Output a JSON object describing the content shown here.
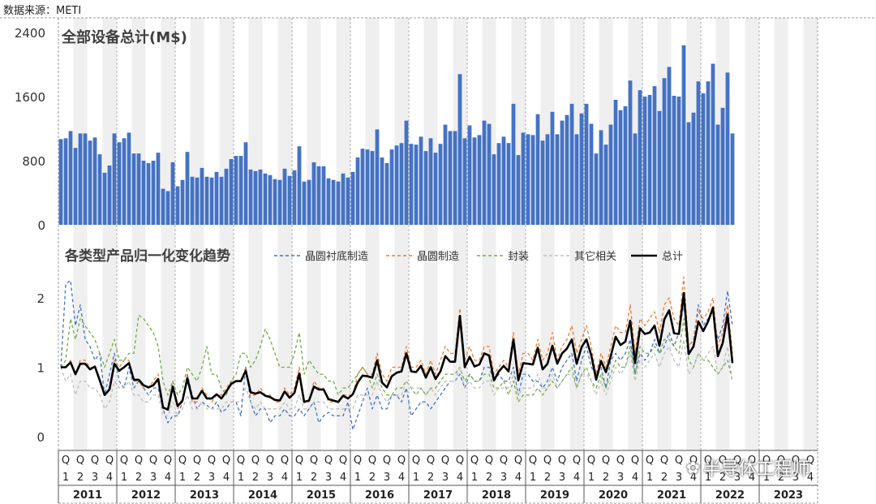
{
  "source_label": "数据来源：METI",
  "watermark": {
    "icon": "wechat-icon",
    "text": "半导体工程师"
  },
  "chart_data": [
    {
      "type": "bar",
      "title": "全部设备总计(M$)",
      "ylim": [
        0,
        2400
      ],
      "yticks": [
        0,
        800,
        1600,
        2400
      ],
      "color": "#4472c4",
      "series": [
        {
          "values": [
            1070,
            1080,
            1170,
            960,
            1140,
            1140,
            1050,
            1090,
            880,
            650,
            740,
            1140,
            1030,
            1080,
            1150,
            890,
            890,
            800,
            770,
            800,
            900,
            450,
            420,
            780,
            480,
            560,
            910,
            600,
            590,
            710,
            600,
            590,
            660,
            600,
            700,
            820,
            860,
            860,
            1030,
            690,
            670,
            690,
            640,
            620,
            570,
            560,
            700,
            610,
            680,
            980,
            540,
            560,
            780,
            730,
            730,
            580,
            560,
            540,
            640,
            590,
            660,
            840,
            950,
            940,
            920,
            1190,
            840,
            770,
            940,
            990,
            1020,
            1300,
            1010,
            1000,
            1100,
            920,
            1080,
            900,
            1010,
            1250,
            1170,
            1170,
            1880,
            1080,
            1240,
            1090,
            1120,
            1300,
            1260,
            880,
            1020,
            1100,
            1020,
            1510,
            870,
            1150,
            1130,
            1120,
            1380,
            1050,
            1130,
            1410,
            1130,
            1300,
            1370,
            1510,
            1130,
            1390,
            1510,
            1260,
            890,
            1180,
            1000,
            1250,
            1560,
            1430,
            1480,
            1800,
            1140,
            1680,
            1600,
            1620,
            1730,
            1420,
            1830,
            1970,
            1610,
            1600,
            2240,
            1280,
            1400,
            1790,
            1640,
            1790,
            2010,
            1250,
            1460,
            1900,
            1140
          ]
        }
      ]
    },
    {
      "type": "line",
      "title": "各类型产品归一化变化趋势",
      "ylim": [
        0,
        2
      ],
      "yticks": [
        0,
        1,
        2
      ],
      "series": [
        {
          "name": "晶圆衬底制造",
          "color": "#4472c4",
          "dash": "dashed",
          "values": [
            1.0,
            2.2,
            2.25,
            1.6,
            1.9,
            1.4,
            1.3,
            1.1,
            1.2,
            0.6,
            0.9,
            1.2,
            0.8,
            0.7,
            1.0,
            0.7,
            0.8,
            0.7,
            0.6,
            0.7,
            0.7,
            0.4,
            0.2,
            0.3,
            0.3,
            0.5,
            0.9,
            0.6,
            0.4,
            0.5,
            0.45,
            0.4,
            0.5,
            0.35,
            0.4,
            0.5,
            0.5,
            0.3,
            1.0,
            0.5,
            0.3,
            0.4,
            0.4,
            0.2,
            0.3,
            0.3,
            0.4,
            0.3,
            0.3,
            0.4,
            0.3,
            0.4,
            0.5,
            0.2,
            0.3,
            0.35,
            0.3,
            0.3,
            0.3,
            0.5,
            0.1,
            0.3,
            0.5,
            0.7,
            0.4,
            0.6,
            0.4,
            0.4,
            0.6,
            0.6,
            0.5,
            0.7,
            0.3,
            0.4,
            0.5,
            0.5,
            0.4,
            0.5,
            0.6,
            0.7,
            0.8,
            0.8,
            0.9,
            0.7,
            0.9,
            0.8,
            0.8,
            1.0,
            1.0,
            0.8,
            0.9,
            0.8,
            0.8,
            1.0,
            0.6,
            0.9,
            0.9,
            0.8,
            0.8,
            0.7,
            0.8,
            1.0,
            0.8,
            1.0,
            1.1,
            1.2,
            0.8,
            1.1,
            1.3,
            1.0,
            0.9,
            1.0,
            0.7,
            1.1,
            1.2,
            1.1,
            1.2,
            1.4,
            0.9,
            1.2,
            1.1,
            1.2,
            1.4,
            1.2,
            1.3,
            1.5,
            1.3,
            1.5,
            1.9,
            1.3,
            1.4,
            1.9,
            1.6,
            1.7,
            1.8,
            1.4,
            1.6,
            2.1,
            1.6
          ]
        },
        {
          "name": "晶圆制造",
          "color": "#ed7d31",
          "dash": "dashed",
          "values": [
            1.0,
            1.0,
            1.1,
            0.9,
            1.1,
            1.1,
            1.0,
            1.0,
            0.8,
            0.6,
            0.7,
            1.1,
            1.0,
            1.1,
            1.1,
            0.8,
            0.8,
            0.7,
            0.7,
            0.8,
            0.9,
            0.4,
            0.4,
            0.8,
            0.4,
            0.5,
            0.9,
            0.5,
            0.5,
            0.7,
            0.6,
            0.5,
            0.6,
            0.6,
            0.7,
            0.8,
            0.8,
            0.8,
            1.0,
            0.6,
            0.6,
            0.7,
            0.6,
            0.6,
            0.5,
            0.5,
            0.7,
            0.6,
            0.7,
            1.0,
            0.5,
            0.5,
            0.8,
            0.7,
            0.7,
            0.5,
            0.5,
            0.5,
            0.6,
            0.6,
            0.6,
            0.9,
            1.0,
            0.9,
            0.9,
            1.2,
            0.9,
            0.8,
            1.0,
            1.0,
            1.0,
            1.3,
            1.0,
            1.0,
            1.1,
            0.9,
            1.1,
            0.9,
            1.1,
            1.3,
            1.2,
            1.2,
            1.85,
            1.1,
            1.3,
            1.1,
            1.1,
            1.3,
            1.3,
            0.9,
            1.0,
            1.1,
            1.0,
            1.5,
            0.9,
            1.2,
            1.2,
            1.1,
            1.4,
            1.1,
            1.2,
            1.5,
            1.1,
            1.3,
            1.4,
            1.6,
            1.2,
            1.4,
            1.6,
            1.3,
            0.9,
            1.2,
            1.0,
            1.3,
            1.6,
            1.5,
            1.5,
            1.9,
            1.2,
            1.7,
            1.6,
            1.7,
            1.8,
            1.5,
            1.9,
            2.0,
            1.7,
            1.6,
            2.3,
            1.3,
            1.4,
            1.8,
            1.7,
            1.8,
            2.0,
            1.3,
            1.5,
            1.9,
            1.2
          ]
        },
        {
          "name": "封装",
          "color": "#70ad47",
          "dash": "dashed",
          "values": [
            1.0,
            1.1,
            1.7,
            1.4,
            1.7,
            1.6,
            1.5,
            1.4,
            1.2,
            1.0,
            1.2,
            1.4,
            1.1,
            1.1,
            1.2,
            1.2,
            1.75,
            1.7,
            1.6,
            1.5,
            1.3,
            0.8,
            0.6,
            0.8,
            0.6,
            0.7,
            1.0,
            0.9,
            0.8,
            1.0,
            1.3,
            0.9,
            0.9,
            0.7,
            0.6,
            0.8,
            0.9,
            1.2,
            1.2,
            1.0,
            1.1,
            1.3,
            1.55,
            1.4,
            1.2,
            1.0,
            1.0,
            1.0,
            1.2,
            1.5,
            0.9,
            1.1,
            1.0,
            0.9,
            0.9,
            0.8,
            0.8,
            0.6,
            0.7,
            0.7,
            0.8,
            0.9,
            1.0,
            0.9,
            0.7,
            0.9,
            0.7,
            0.6,
            0.6,
            0.7,
            0.7,
            0.8,
            0.7,
            0.6,
            0.7,
            0.6,
            0.7,
            0.7,
            0.8,
            0.9,
            0.9,
            0.9,
            1.0,
            0.8,
            0.9,
            0.8,
            0.8,
            0.9,
            0.9,
            0.7,
            0.7,
            0.8,
            0.6,
            0.8,
            0.5,
            0.6,
            0.6,
            0.6,
            0.7,
            0.6,
            0.7,
            0.8,
            0.7,
            0.8,
            0.9,
            1.0,
            0.7,
            0.9,
            1.0,
            0.8,
            0.7,
            0.9,
            0.7,
            0.9,
            1.1,
            1.0,
            1.0,
            1.3,
            0.9,
            1.3,
            1.2,
            1.2,
            1.3,
            1.2,
            1.4,
            1.4,
            1.3,
            1.2,
            1.7,
            1.1,
            1.0,
            1.2,
            1.1,
            1.1,
            1.0,
            0.9,
            1.0,
            1.1,
            0.8
          ]
        },
        {
          "name": "其它相关",
          "color": "#bfbfbf",
          "dash": "dashed",
          "values": [
            1.0,
            0.8,
            0.9,
            0.6,
            0.8,
            0.8,
            0.7,
            0.7,
            0.6,
            0.4,
            0.5,
            0.8,
            0.7,
            0.7,
            0.8,
            0.6,
            0.6,
            0.5,
            0.5,
            0.6,
            0.6,
            0.3,
            0.3,
            0.5,
            0.3,
            0.4,
            0.6,
            0.4,
            0.4,
            0.5,
            0.4,
            0.4,
            0.4,
            0.4,
            0.5,
            0.5,
            0.5,
            0.5,
            0.7,
            0.5,
            0.4,
            0.5,
            0.4,
            0.4,
            0.4,
            0.4,
            0.5,
            0.4,
            0.4,
            0.6,
            0.4,
            0.4,
            0.5,
            0.5,
            0.5,
            0.4,
            0.4,
            0.4,
            0.4,
            0.4,
            0.4,
            0.6,
            0.6,
            0.6,
            0.6,
            0.8,
            0.6,
            0.5,
            0.6,
            0.6,
            0.6,
            0.8,
            0.7,
            0.7,
            0.7,
            0.6,
            0.7,
            0.6,
            0.7,
            0.8,
            0.8,
            0.8,
            1.0,
            0.7,
            0.8,
            0.7,
            0.7,
            0.8,
            0.8,
            0.6,
            0.7,
            0.7,
            0.7,
            0.9,
            0.6,
            0.7,
            0.7,
            0.7,
            0.9,
            0.7,
            0.7,
            0.9,
            0.7,
            0.8,
            0.9,
            0.9,
            0.7,
            0.9,
            0.9,
            0.8,
            0.6,
            0.8,
            0.6,
            0.8,
            1.0,
            0.9,
            1.0,
            1.2,
            0.8,
            1.1,
            1.0,
            1.1,
            1.2,
            1.0,
            1.2,
            1.3,
            1.1,
            1.0,
            1.4,
            0.9,
            1.0,
            1.2,
            1.1,
            1.2,
            1.3,
            0.9,
            1.0,
            1.3,
            0.8
          ]
        },
        {
          "name": "总计",
          "color": "#000000",
          "dash": "solid",
          "values": [
            1.0,
            1.0,
            1.07,
            0.9,
            1.05,
            1.05,
            0.97,
            1.01,
            0.81,
            0.6,
            0.68,
            1.05,
            0.95,
            1.0,
            1.06,
            0.82,
            0.82,
            0.74,
            0.71,
            0.74,
            0.83,
            0.42,
            0.39,
            0.72,
            0.44,
            0.52,
            0.84,
            0.55,
            0.55,
            0.66,
            0.55,
            0.55,
            0.61,
            0.55,
            0.65,
            0.76,
            0.8,
            0.8,
            0.95,
            0.64,
            0.62,
            0.64,
            0.59,
            0.57,
            0.53,
            0.52,
            0.65,
            0.56,
            0.63,
            0.91,
            0.5,
            0.52,
            0.72,
            0.68,
            0.68,
            0.54,
            0.52,
            0.5,
            0.59,
            0.55,
            0.61,
            0.78,
            0.88,
            0.87,
            0.85,
            1.1,
            0.78,
            0.71,
            0.87,
            0.92,
            0.94,
            1.2,
            0.94,
            0.93,
            1.02,
            0.85,
            1.0,
            0.83,
            0.94,
            1.16,
            1.08,
            1.08,
            1.74,
            1.0,
            1.15,
            1.01,
            1.04,
            1.2,
            1.17,
            0.81,
            0.94,
            1.02,
            0.94,
            1.4,
            0.81,
            1.06,
            1.05,
            1.04,
            1.28,
            0.97,
            1.05,
            1.31,
            1.05,
            1.2,
            1.27,
            1.4,
            1.05,
            1.29,
            1.4,
            1.17,
            0.82,
            1.09,
            0.93,
            1.16,
            1.44,
            1.32,
            1.37,
            1.67,
            1.06,
            1.56,
            1.48,
            1.5,
            1.6,
            1.31,
            1.69,
            1.82,
            1.49,
            1.48,
            2.07,
            1.19,
            1.3,
            1.66,
            1.52,
            1.66,
            1.86,
            1.16,
            1.35,
            1.76,
            1.06
          ]
        }
      ]
    }
  ],
  "x_axis": {
    "quarter_prefix": "Q",
    "quarter_numbers": [
      "1",
      "2",
      "3",
      "4"
    ],
    "years": [
      {
        "label": "2011",
        "quarters": [
          "1",
          "2",
          "3",
          "4"
        ]
      },
      {
        "label": "2012",
        "quarters": [
          "1",
          "2",
          "3",
          "4"
        ]
      },
      {
        "label": "2013",
        "quarters": [
          "1",
          "2",
          "3",
          "4"
        ]
      },
      {
        "label": "2014",
        "quarters": [
          "1",
          "2",
          "3",
          "4"
        ]
      },
      {
        "label": "2015",
        "quarters": [
          "1",
          "2",
          "3",
          "4"
        ]
      },
      {
        "label": "2016",
        "quarters": [
          "1",
          "2",
          "3",
          "4"
        ]
      },
      {
        "label": "2017",
        "quarters": [
          "1",
          "2",
          "3",
          "4"
        ]
      },
      {
        "label": "2018",
        "quarters": [
          "1",
          "2",
          "3",
          "4"
        ]
      },
      {
        "label": "2019",
        "quarters": [
          "1",
          "2",
          "3",
          "4"
        ]
      },
      {
        "label": "2020",
        "quarters": [
          "1",
          "2",
          "3",
          "4"
        ]
      },
      {
        "label": "2021",
        "quarters": [
          "1",
          "2",
          "3",
          "4"
        ]
      },
      {
        "label": "2022",
        "quarters": [
          "1",
          "2",
          "3",
          "4"
        ]
      },
      {
        "label": "2023",
        "quarters": [
          "1",
          "2",
          "3",
          "4"
        ]
      }
    ]
  }
}
